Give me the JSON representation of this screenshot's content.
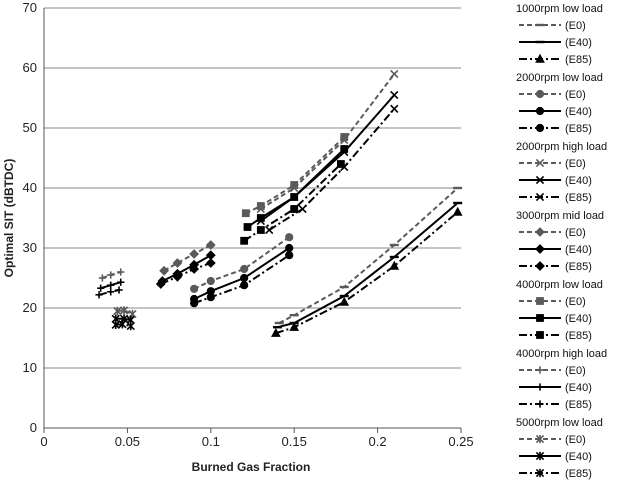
{
  "chart_data": {
    "type": "line",
    "title": "",
    "xlabel": "Burned Gas Fraction",
    "ylabel": "Optimal SIT (dBTDC)",
    "xlim": [
      0,
      0.25
    ],
    "ylim": [
      0,
      70
    ],
    "x_ticks": [
      "0",
      "0.05",
      "0.1",
      "0.15",
      "0.2",
      "0.25"
    ],
    "y_ticks": [
      "0",
      "10",
      "20",
      "30",
      "40",
      "50",
      "60",
      "70"
    ],
    "grid": "horizontal",
    "legend_position": "right",
    "colors": {
      "E0": "#5a5a5a",
      "E40": "#000000",
      "E85": "#000000"
    },
    "groups": [
      {
        "name": "1000rpm low load",
        "series": [
          {
            "name": "(E0)",
            "marker": "dash",
            "points": [
              [
                0.141,
                17.5
              ],
              [
                0.15,
                18.8
              ],
              [
                0.18,
                23.5
              ],
              [
                0.21,
                30.5
              ],
              [
                0.248,
                40
              ]
            ]
          },
          {
            "name": "(E40)",
            "marker": "dash",
            "points": [
              [
                0.14,
                16.8
              ],
              [
                0.15,
                17.5
              ],
              [
                0.18,
                22.0
              ],
              [
                0.21,
                28.5
              ],
              [
                0.248,
                37.5
              ]
            ]
          },
          {
            "name": "(E85)",
            "marker": "triangle",
            "points": [
              [
                0.139,
                15.8
              ],
              [
                0.15,
                16.8
              ],
              [
                0.18,
                21.0
              ],
              [
                0.21,
                27.0
              ],
              [
                0.248,
                36.0
              ]
            ]
          }
        ]
      },
      {
        "name": "2000rpm low load",
        "series": [
          {
            "name": "(E0)",
            "marker": "circle",
            "points": [
              [
                0.09,
                23.2
              ],
              [
                0.1,
                24.5
              ],
              [
                0.12,
                26.5
              ],
              [
                0.147,
                31.8
              ]
            ]
          },
          {
            "name": "(E40)",
            "marker": "circle",
            "points": [
              [
                0.09,
                21.5
              ],
              [
                0.1,
                22.8
              ],
              [
                0.12,
                25.0
              ],
              [
                0.147,
                30.0
              ]
            ]
          },
          {
            "name": "(E85)",
            "marker": "circle",
            "points": [
              [
                0.09,
                20.8
              ],
              [
                0.1,
                21.8
              ],
              [
                0.12,
                23.8
              ],
              [
                0.147,
                28.8
              ]
            ]
          }
        ]
      },
      {
        "name": "2000rpm high load",
        "series": [
          {
            "name": "(E0)",
            "marker": "x",
            "points": [
              [
                0.13,
                36.5
              ],
              [
                0.15,
                40.0
              ],
              [
                0.18,
                48.0
              ],
              [
                0.21,
                59.0
              ]
            ]
          },
          {
            "name": "(E40)",
            "marker": "x",
            "points": [
              [
                0.13,
                34.5
              ],
              [
                0.15,
                38.5
              ],
              [
                0.18,
                46.0
              ],
              [
                0.21,
                55.5
              ]
            ]
          },
          {
            "name": "(E85)",
            "marker": "x",
            "points": [
              [
                0.135,
                33.0
              ],
              [
                0.155,
                36.5
              ],
              [
                0.18,
                43.5
              ],
              [
                0.21,
                53.2
              ]
            ]
          }
        ]
      },
      {
        "name": "3000rpm mid load",
        "series": [
          {
            "name": "(E0)",
            "marker": "diamond",
            "points": [
              [
                0.072,
                26.2
              ],
              [
                0.08,
                27.5
              ],
              [
                0.09,
                29.0
              ],
              [
                0.1,
                30.5
              ]
            ]
          },
          {
            "name": "(E40)",
            "marker": "diamond",
            "points": [
              [
                0.071,
                24.5
              ],
              [
                0.08,
                25.7
              ],
              [
                0.09,
                27.2
              ],
              [
                0.1,
                28.8
              ]
            ]
          },
          {
            "name": "(E85)",
            "marker": "diamond",
            "points": [
              [
                0.07,
                24.0
              ],
              [
                0.08,
                25.2
              ],
              [
                0.09,
                26.5
              ],
              [
                0.1,
                27.5
              ]
            ]
          }
        ]
      },
      {
        "name": "4000rpm low load",
        "series": [
          {
            "name": "(E0)",
            "marker": "square",
            "points": [
              [
                0.121,
                35.8
              ],
              [
                0.13,
                37.0
              ],
              [
                0.15,
                40.5
              ],
              [
                0.18,
                48.5
              ]
            ]
          },
          {
            "name": "(E40)",
            "marker": "square",
            "points": [
              [
                0.122,
                33.5
              ],
              [
                0.13,
                35.0
              ],
              [
                0.15,
                38.5
              ],
              [
                0.18,
                46.5
              ]
            ]
          },
          {
            "name": "(E85)",
            "marker": "square",
            "points": [
              [
                0.12,
                31.2
              ],
              [
                0.13,
                33.0
              ],
              [
                0.15,
                36.5
              ],
              [
                0.178,
                44.0
              ]
            ]
          }
        ]
      },
      {
        "name": "4000rpm high load",
        "series": [
          {
            "name": "(E0)",
            "marker": "plus",
            "points": [
              [
                0.035,
                25.0
              ],
              [
                0.04,
                25.5
              ],
              [
                0.046,
                26.0
              ]
            ]
          },
          {
            "name": "(E40)",
            "marker": "plus",
            "points": [
              [
                0.034,
                23.3
              ],
              [
                0.04,
                23.8
              ],
              [
                0.046,
                24.3
              ]
            ]
          },
          {
            "name": "(E85)",
            "marker": "plus",
            "points": [
              [
                0.033,
                22.2
              ],
              [
                0.04,
                22.7
              ],
              [
                0.045,
                23.0
              ]
            ]
          }
        ]
      },
      {
        "name": "5000rpm low load",
        "series": [
          {
            "name": "(E0)",
            "marker": "star",
            "points": [
              [
                0.044,
                19.5
              ],
              [
                0.048,
                19.6
              ],
              [
                0.053,
                19.0
              ]
            ]
          },
          {
            "name": "(E40)",
            "marker": "star",
            "points": [
              [
                0.043,
                18.2
              ],
              [
                0.048,
                18.2
              ],
              [
                0.052,
                18.0
              ]
            ]
          },
          {
            "name": "(E85)",
            "marker": "star",
            "points": [
              [
                0.043,
                17.2
              ],
              [
                0.047,
                17.3
              ],
              [
                0.052,
                17.0
              ]
            ]
          }
        ]
      }
    ]
  }
}
